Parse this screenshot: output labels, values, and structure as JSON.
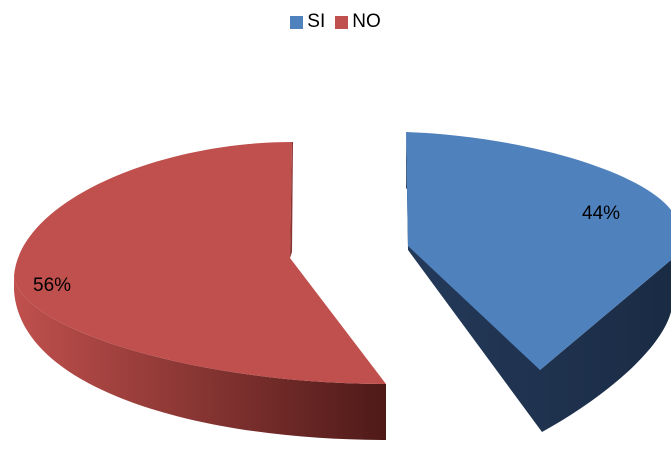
{
  "chart_data": {
    "type": "pie",
    "style": "3d-exploded",
    "legend_position": "top",
    "series": [
      {
        "name": "SI",
        "value": 44,
        "label": "44%",
        "color": "#4f81bd",
        "side_color": "#1f3350"
      },
      {
        "name": "NO",
        "value": 56,
        "label": "56%",
        "color": "#c0504d",
        "side_color": "#8f3533"
      }
    ]
  }
}
